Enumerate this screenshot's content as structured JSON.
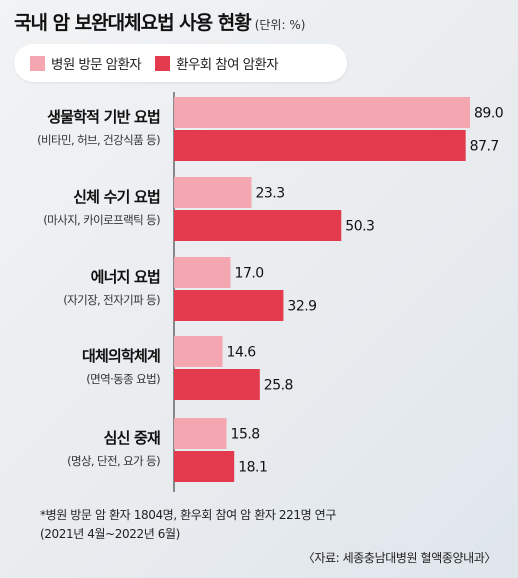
{
  "header": {
    "title": "국내 암 보완대체요법 사용 현황",
    "unit": "(단위: %)"
  },
  "colors": {
    "hospital": "#f4a7b0",
    "society": "#e33b4d"
  },
  "chart_data": {
    "type": "bar",
    "orientation": "horizontal",
    "xlim": [
      0,
      89
    ],
    "categories": [
      {
        "label": "생물학적 기반 요법",
        "sub": "(비타민, 허브, 건강식품 등)"
      },
      {
        "label": "신체 수기 요법",
        "sub": "(마사지, 카이로프랙틱 등)"
      },
      {
        "label": "에너지 요법",
        "sub": "(자기장, 전자기파 등)"
      },
      {
        "label": "대체의학체계",
        "sub": "(면역·동종 요법)"
      },
      {
        "label": "심신 중재",
        "sub": "(명상, 단전, 요가 등)"
      }
    ],
    "series": [
      {
        "name": "병원 방문 암환자",
        "values": [
          89.0,
          23.3,
          17.0,
          14.6,
          15.8
        ],
        "labels": [
          "89.0",
          "23.3",
          "17.0",
          "14.6",
          "15.8"
        ]
      },
      {
        "name": "환우회 참여 암환자",
        "values": [
          87.7,
          50.3,
          32.9,
          25.8,
          18.1
        ],
        "labels": [
          "87.7",
          "50.3",
          "32.9",
          "25.8",
          "18.1"
        ]
      }
    ]
  },
  "footnote": {
    "line1": "*병원 방문 암 환자 1804명, 환우회 참여 암 환자 221명 연구",
    "line2": "(2021년 4월~2022년 6월)"
  },
  "source": "〈자료: 세종충남대병원 혈액종양내과〉"
}
